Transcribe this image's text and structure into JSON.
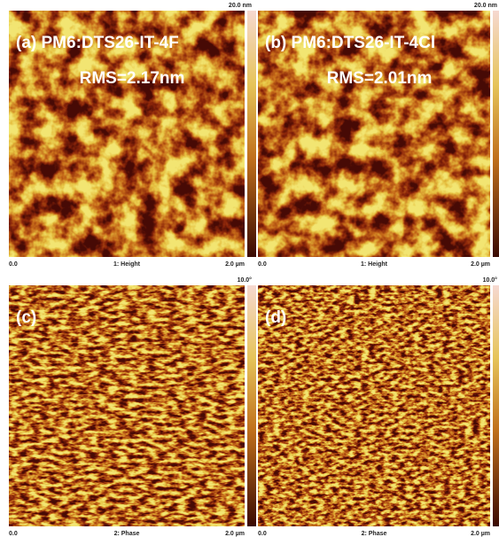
{
  "panels": [
    {
      "label": "(a) PM6:DTS26-IT-4F",
      "rms": "RMS=2.17nm",
      "scale_max": "20.0 nm",
      "x_start": "0.0",
      "channel": "1: Height",
      "x_end": "2.0 µm"
    },
    {
      "label": "(b) PM6:DTS26-IT-4Cl",
      "rms": "RMS=2.01nm",
      "scale_max": "20.0 nm",
      "x_start": "0.0",
      "channel": "1: Height",
      "x_end": "2.0 µm"
    },
    {
      "label": "(c)",
      "scale_max": "10.0°",
      "x_start": "0.0",
      "channel": "2: Phase",
      "x_end": "2.0 µm"
    },
    {
      "label": "(d)",
      "scale_max": "10.0°",
      "x_start": "0.0",
      "channel": "2: Phase",
      "x_end": "2.0 µm"
    }
  ]
}
